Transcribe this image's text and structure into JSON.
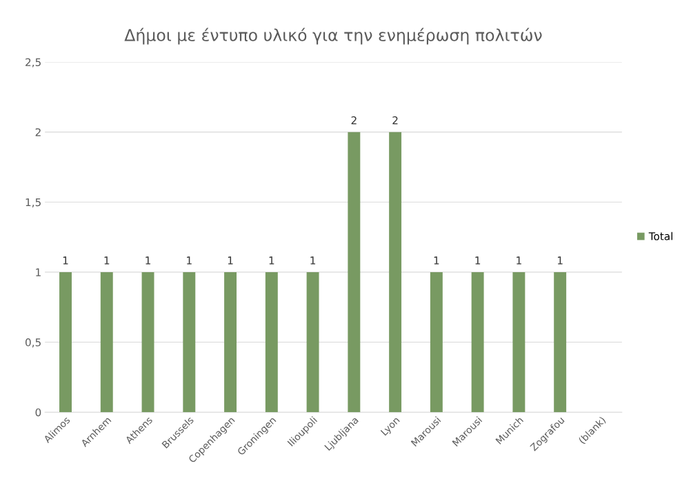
{
  "chart_data": {
    "type": "bar",
    "title": "Δήμοι με έντυπο υλικό για την ενημέρωση πολιτών",
    "categories": [
      "Alimos",
      "Arnhem",
      "Athens",
      "Brussels",
      "Copenhagen",
      "Groningen",
      "Ilioupoli",
      "Ljubljana",
      "Lyon",
      "Marousi",
      "Marousi",
      "Munich",
      "Zografou",
      "(blank)"
    ],
    "series": [
      {
        "name": "Total",
        "color": "#789a62",
        "values": [
          1,
          1,
          1,
          1,
          1,
          1,
          1,
          2,
          2,
          1,
          1,
          1,
          1,
          null
        ]
      }
    ],
    "ylim": [
      0,
      2.5
    ],
    "yticks": [
      0,
      {
        "value": 0.5,
        "label": "0,5"
      },
      1,
      {
        "value": 1.5,
        "label": "1,5"
      },
      2,
      {
        "value": 2.5,
        "label": "2,5"
      }
    ],
    "grid": "y",
    "legend": "right",
    "data_labels": true
  }
}
